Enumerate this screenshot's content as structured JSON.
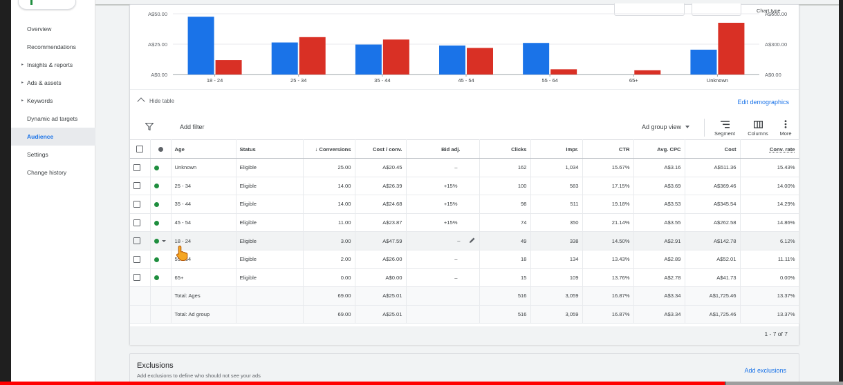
{
  "sidebar": {
    "items": [
      {
        "label": "Overview",
        "caret": false,
        "active": false
      },
      {
        "label": "Recommendations",
        "caret": false,
        "active": false
      },
      {
        "label": "Insights & reports",
        "caret": true,
        "active": false
      },
      {
        "label": "Ads & assets",
        "caret": true,
        "active": false
      },
      {
        "label": "Keywords",
        "caret": true,
        "active": false
      },
      {
        "label": "Dynamic ad targets",
        "caret": false,
        "active": false
      },
      {
        "label": "Audience",
        "caret": false,
        "active": true
      },
      {
        "label": "Settings",
        "caret": false,
        "active": false
      },
      {
        "label": "Change history",
        "caret": false,
        "active": false
      }
    ]
  },
  "chart": {
    "chart_type_label": "Chart type"
  },
  "chart_data": {
    "type": "bar",
    "title": "",
    "categories": [
      "18 - 24",
      "25 - 34",
      "35 - 44",
      "45 - 54",
      "55 - 64",
      "65+",
      "Unknown"
    ],
    "series": [
      {
        "axis": "left",
        "color": "#1a73e8",
        "values": [
          47.59,
          26.39,
          24.68,
          23.87,
          26.0,
          0.0,
          20.45
        ]
      },
      {
        "axis": "right",
        "color": "#d93025",
        "values": [
          142.78,
          369.46,
          345.54,
          262.58,
          52.01,
          41.73,
          511.36
        ]
      }
    ],
    "left_axis": {
      "ticks": [
        "A$0.00",
        "A$25.00",
        "A$50.00"
      ],
      "range": [
        0,
        50
      ]
    },
    "right_axis": {
      "ticks": [
        "A$0.00",
        "A$300.00",
        "A$600.00"
      ],
      "range": [
        0,
        600
      ]
    },
    "grid": true
  },
  "table_controls": {
    "hide_table": "Hide table",
    "edit_demographics": "Edit demographics",
    "add_filter": "Add filter",
    "view_select": "Ad group view",
    "segment": "Segment",
    "columns": "Columns",
    "more": "More"
  },
  "table": {
    "headers": [
      "Age",
      "Status",
      "Conversions",
      "Cost / conv.",
      "Bid adj.",
      "Clicks",
      "Impr.",
      "CTR",
      "Avg. CPC",
      "Cost",
      "Conv. rate"
    ],
    "rows": [
      {
        "age": "Unknown",
        "status": "Eligible",
        "conversions": "25.00",
        "cost_conv": "A$20.45",
        "bid_adj": "–",
        "clicks": "162",
        "impr": "1,034",
        "ctr": "15.67%",
        "avg_cpc": "A$3.16",
        "cost": "A$511.36",
        "conv_rate": "15.43%"
      },
      {
        "age": "25 - 34",
        "status": "Eligible",
        "conversions": "14.00",
        "cost_conv": "A$26.39",
        "bid_adj": "+15%",
        "clicks": "100",
        "impr": "583",
        "ctr": "17.15%",
        "avg_cpc": "A$3.69",
        "cost": "A$369.46",
        "conv_rate": "14.00%"
      },
      {
        "age": "35 - 44",
        "status": "Eligible",
        "conversions": "14.00",
        "cost_conv": "A$24.68",
        "bid_adj": "+15%",
        "clicks": "98",
        "impr": "511",
        "ctr": "19.18%",
        "avg_cpc": "A$3.53",
        "cost": "A$345.54",
        "conv_rate": "14.29%"
      },
      {
        "age": "45 - 54",
        "status": "Eligible",
        "conversions": "11.00",
        "cost_conv": "A$23.87",
        "bid_adj": "+15%",
        "clicks": "74",
        "impr": "350",
        "ctr": "21.14%",
        "avg_cpc": "A$3.55",
        "cost": "A$262.58",
        "conv_rate": "14.86%"
      },
      {
        "age": "18 - 24",
        "status": "Eligible",
        "conversions": "3.00",
        "cost_conv": "A$47.59",
        "bid_adj": "–",
        "clicks": "49",
        "impr": "338",
        "ctr": "14.50%",
        "avg_cpc": "A$2.91",
        "cost": "A$142.78",
        "conv_rate": "6.12%"
      },
      {
        "age": "55 - 64",
        "status": "Eligible",
        "conversions": "2.00",
        "cost_conv": "A$26.00",
        "bid_adj": "–",
        "clicks": "18",
        "impr": "134",
        "ctr": "13.43%",
        "avg_cpc": "A$2.89",
        "cost": "A$52.01",
        "conv_rate": "11.11%"
      },
      {
        "age": "65+",
        "status": "Eligible",
        "conversions": "0.00",
        "cost_conv": "A$0.00",
        "bid_adj": "–",
        "clicks": "15",
        "impr": "109",
        "ctr": "13.76%",
        "avg_cpc": "A$2.78",
        "cost": "A$41.73",
        "conv_rate": "0.00%"
      }
    ],
    "totals": [
      {
        "label": "Total: Ages",
        "conversions": "69.00",
        "cost_conv": "A$25.01",
        "clicks": "516",
        "impr": "3,059",
        "ctr": "16.87%",
        "avg_cpc": "A$3.34",
        "cost": "A$1,725.46",
        "conv_rate": "13.37%"
      },
      {
        "label": "Total: Ad group",
        "conversions": "69.00",
        "cost_conv": "A$25.01",
        "clicks": "516",
        "impr": "3,059",
        "ctr": "16.87%",
        "avg_cpc": "A$3.34",
        "cost": "A$1,725.46",
        "conv_rate": "13.37%"
      }
    ],
    "pagination": "1 - 7 of 7"
  },
  "exclusions": {
    "title": "Exclusions",
    "subtitle": "Add exclusions to define who should not see your ads",
    "add_label": "Add exclusions"
  },
  "video_progress": 0.86
}
